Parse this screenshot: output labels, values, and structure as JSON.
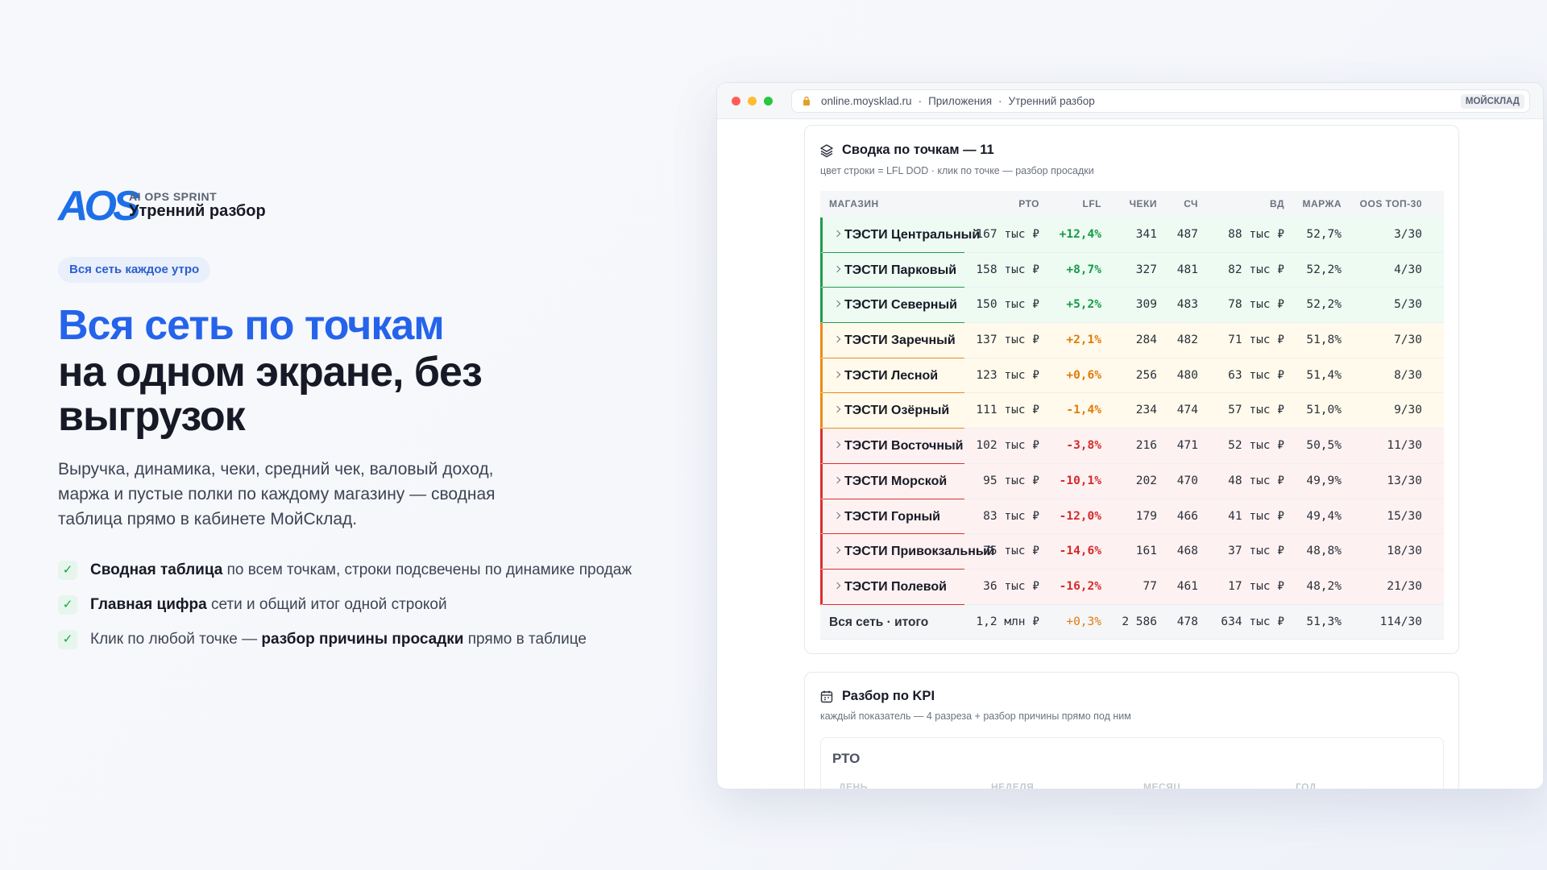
{
  "hero": {
    "logo": "AOS",
    "eyebrow": "AI OPS SPRINT",
    "product": "Утренний разбор",
    "badge": "Вся сеть каждое утро",
    "headline_accent": "Вся сеть по точкам",
    "headline_lines": [
      "на одном экране, без",
      "выгрузок"
    ],
    "lead": "Выручка, динамика, чеки, средний чек, валовый доход, маржа и пустые полки по каждому магазину — сводная таблица прямо в кабинете МойСклад.",
    "bullets": [
      [
        {
          "text": "Сводная таблица",
          "bold": true
        },
        {
          "text": " по всем точкам, строки подсвечены по динамике продаж",
          "bold": false
        }
      ],
      [
        {
          "text": "Главная цифра",
          "bold": true
        },
        {
          "text": " сети и общий итог одной строкой",
          "bold": false
        }
      ],
      [
        {
          "text": "Клик по любой точке — ",
          "bold": false
        },
        {
          "text": "разбор причины просадки",
          "bold": true
        },
        {
          "text": " прямо в таблице",
          "bold": false
        }
      ]
    ],
    "check": "✓"
  },
  "browser": {
    "url": [
      "online.moysklad.ru",
      "Приложения",
      "Утренний разбор"
    ],
    "separator": "·",
    "badge": "МОЙСКЛАД"
  },
  "summary": {
    "title": "Сводка по точкам — 11",
    "subtitle": "цвет строки = LFL DOD · клик по точке — разбор просадки",
    "columns": [
      "МАГАЗИН",
      "РТО",
      "LFL",
      "ЧЕКИ",
      "СЧ",
      "ВД",
      "МАРЖА",
      "OOS ТОП-30"
    ],
    "rows": [
      {
        "cells": [
          "ТЭСТИ Центральный",
          "167 тыс ₽",
          "+12,4%",
          "341",
          "487",
          "88 тыс ₽",
          "52,7%",
          "3/30"
        ],
        "color": "green"
      },
      {
        "cells": [
          "ТЭСТИ Парковый",
          "158 тыс ₽",
          "+8,7%",
          "327",
          "481",
          "82 тыс ₽",
          "52,2%",
          "4/30"
        ],
        "color": "green"
      },
      {
        "cells": [
          "ТЭСТИ Северный",
          "150 тыс ₽",
          "+5,2%",
          "309",
          "483",
          "78 тыс ₽",
          "52,2%",
          "5/30"
        ],
        "color": "green"
      },
      {
        "cells": [
          "ТЭСТИ Заречный",
          "137 тыс ₽",
          "+2,1%",
          "284",
          "482",
          "71 тыс ₽",
          "51,8%",
          "7/30"
        ],
        "color": "amber"
      },
      {
        "cells": [
          "ТЭСТИ Лесной",
          "123 тыс ₽",
          "+0,6%",
          "256",
          "480",
          "63 тыс ₽",
          "51,4%",
          "8/30"
        ],
        "color": "amber"
      },
      {
        "cells": [
          "ТЭСТИ Озёрный",
          "111 тыс ₽",
          "-1,4%",
          "234",
          "474",
          "57 тыс ₽",
          "51,0%",
          "9/30"
        ],
        "color": "amber"
      },
      {
        "cells": [
          "ТЭСТИ Восточный",
          "102 тыс ₽",
          "-3,8%",
          "216",
          "471",
          "52 тыс ₽",
          "50,5%",
          "11/30"
        ],
        "color": "red"
      },
      {
        "cells": [
          "ТЭСТИ Морской",
          "95 тыс ₽",
          "-10,1%",
          "202",
          "470",
          "48 тыс ₽",
          "49,9%",
          "13/30"
        ],
        "color": "red"
      },
      {
        "cells": [
          "ТЭСТИ Горный",
          "83 тыс ₽",
          "-12,0%",
          "179",
          "466",
          "41 тыс ₽",
          "49,4%",
          "15/30"
        ],
        "color": "red"
      },
      {
        "cells": [
          "ТЭСТИ Привокзальный",
          "75 тыс ₽",
          "-14,6%",
          "161",
          "468",
          "37 тыс ₽",
          "48,8%",
          "18/30"
        ],
        "color": "red"
      },
      {
        "cells": [
          "ТЭСТИ Полевой",
          "36 тыс ₽",
          "-16,2%",
          "77",
          "461",
          "17 тыс ₽",
          "48,2%",
          "21/30"
        ],
        "color": "red"
      }
    ],
    "total": [
      "Вся сеть · итого",
      "1,2 млн ₽",
      "+0,3%",
      "2 586",
      "478",
      "634 тыс ₽",
      "51,3%",
      "114/30"
    ],
    "total_color": "amber"
  },
  "kpi": {
    "title": "Разбор по KPI",
    "subtitle": "каждый показатель — 4 разреза + разбор причины прямо под ним",
    "block_title": "РТО",
    "periods": [
      "ДЕНЬ",
      "НЕДЕЛЯ",
      "МЕСЯЦ",
      "ГОД"
    ]
  }
}
